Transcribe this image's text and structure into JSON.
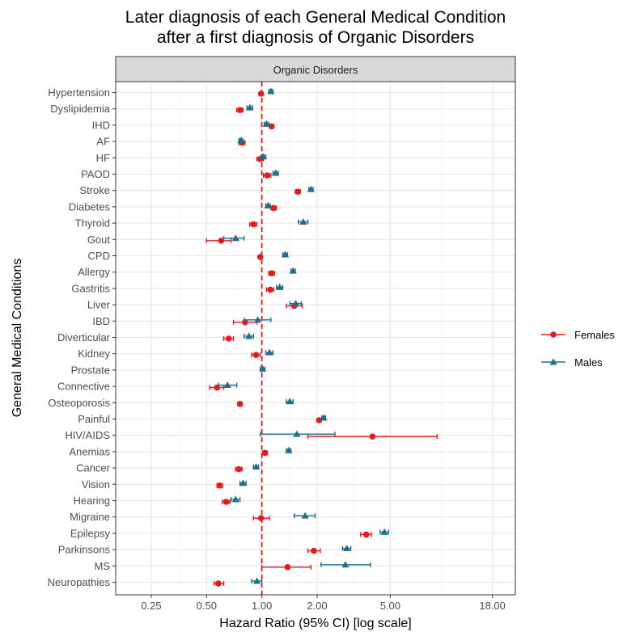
{
  "chart_data": {
    "type": "scatter",
    "title": [
      "Later diagnosis of each General Medical Condition",
      "after a first diagnosis of Organic Disorders"
    ],
    "facet_label": "Organic Disorders",
    "xlabel": "Hazard Ratio (95% CI) [log scale]",
    "ylabel": "General Medical Conditions",
    "x_scale": "log",
    "xlim": [
      0.16,
      24
    ],
    "x_ticks": [
      0.25,
      0.5,
      1.0,
      2.0,
      5.0,
      18.0
    ],
    "x_tick_labels": [
      "0.25",
      "0.50",
      "1.00",
      "2.00",
      "5.00",
      "18.00"
    ],
    "reference_line": 1.0,
    "grid": true,
    "legend_position": "right",
    "categories": [
      "Hypertension",
      "Dyslipidemia",
      "IHD",
      "AF",
      "HF",
      "PAOD",
      "Stroke",
      "Diabetes",
      "Thyroid",
      "Gout",
      "CPD",
      "Allergy",
      "Gastritis",
      "Liver",
      "IBD",
      "Diverticular",
      "Kidney",
      "Prostate",
      "Connective",
      "Osteoporosis",
      "Painful",
      "HIV/AIDS",
      "Anemias",
      "Cancer",
      "Vision",
      "Hearing",
      "Migraine",
      "Epilepsy",
      "Parkinsons",
      "MS",
      "Neuropathies"
    ],
    "series": [
      {
        "name": "Females",
        "color": "#E41A1C",
        "marker": "circle",
        "values": [
          0.99,
          0.76,
          1.13,
          0.78,
          0.98,
          1.07,
          1.57,
          1.16,
          0.9,
          0.6,
          0.98,
          1.13,
          1.11,
          1.5,
          0.81,
          0.66,
          0.93,
          null,
          0.57,
          0.76,
          2.05,
          4.0,
          1.04,
          0.75,
          0.59,
          0.64,
          0.99,
          3.7,
          1.92,
          1.38,
          0.58
        ],
        "lower": [
          0.97,
          0.73,
          1.1,
          0.75,
          0.94,
          1.02,
          1.52,
          1.12,
          0.86,
          0.5,
          0.96,
          1.09,
          1.06,
          1.36,
          0.7,
          0.62,
          0.88,
          null,
          0.52,
          0.74,
          2.0,
          1.78,
          1.01,
          0.72,
          0.57,
          0.61,
          0.9,
          3.45,
          1.78,
          1.0,
          0.55
        ],
        "upper": [
          1.01,
          0.79,
          1.16,
          0.81,
          1.02,
          1.12,
          1.62,
          1.2,
          0.94,
          0.68,
          1.0,
          1.17,
          1.16,
          1.66,
          0.94,
          0.7,
          0.98,
          null,
          0.62,
          0.78,
          2.1,
          9.0,
          1.07,
          0.78,
          0.61,
          0.67,
          1.1,
          3.95,
          2.08,
          1.85,
          0.62
        ]
      },
      {
        "name": "Males",
        "color": "#1F6F8B",
        "marker": "triangle",
        "values": [
          1.12,
          0.86,
          1.06,
          0.77,
          1.02,
          1.19,
          1.85,
          1.08,
          1.68,
          0.72,
          1.34,
          1.48,
          1.25,
          1.53,
          0.95,
          0.85,
          1.1,
          1.01,
          0.65,
          1.42,
          2.17,
          1.55,
          1.4,
          0.93,
          0.79,
          0.72,
          1.72,
          4.65,
          2.9,
          2.85,
          0.94
        ],
        "lower": [
          1.09,
          0.83,
          1.03,
          0.75,
          0.99,
          1.15,
          1.8,
          1.05,
          1.58,
          0.62,
          1.3,
          1.44,
          1.2,
          1.42,
          0.8,
          0.8,
          1.05,
          0.98,
          0.58,
          1.36,
          2.12,
          0.98,
          1.36,
          0.9,
          0.76,
          0.68,
          1.5,
          4.4,
          2.75,
          2.1,
          0.88
        ],
        "upper": [
          1.15,
          0.89,
          1.09,
          0.79,
          1.05,
          1.23,
          1.9,
          1.11,
          1.78,
          0.8,
          1.38,
          1.52,
          1.3,
          1.64,
          1.12,
          0.9,
          1.15,
          1.04,
          0.73,
          1.48,
          2.22,
          2.5,
          1.44,
          0.96,
          0.82,
          0.76,
          1.95,
          4.9,
          3.05,
          3.9,
          1.0
        ]
      }
    ]
  }
}
